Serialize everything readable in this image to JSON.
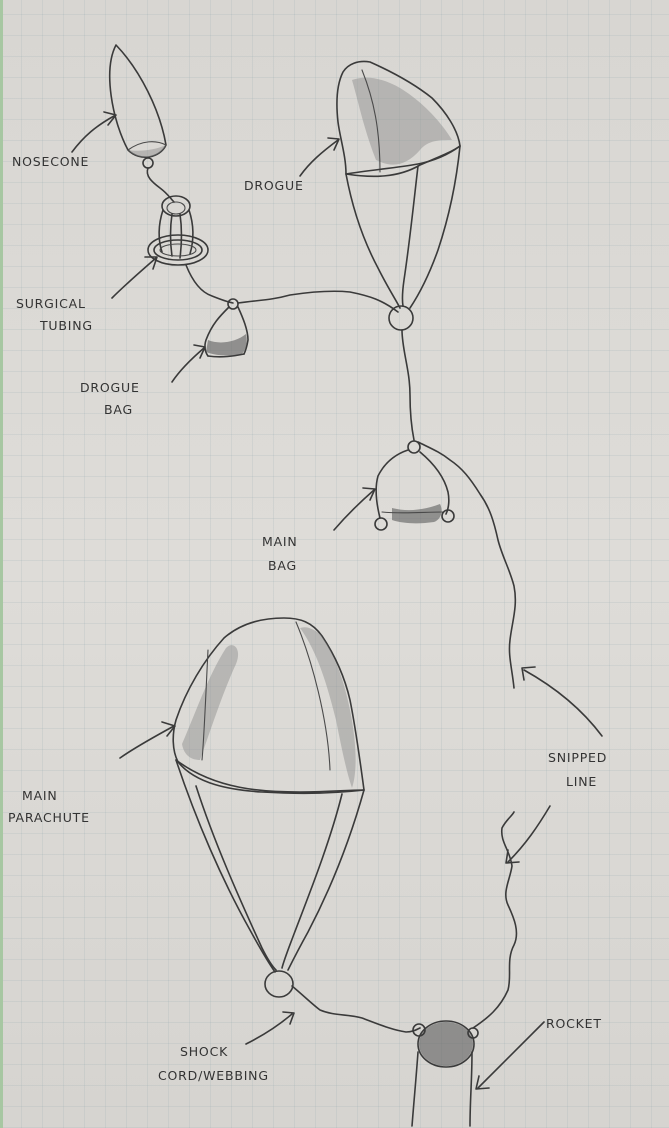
{
  "labels": {
    "nosecone": "NOSECONE",
    "drogue": "DROGUE",
    "surgical_tubing_l1": "SURGICAL",
    "surgical_tubing_l2": "TUBING",
    "drogue_bag_l1": "DROGUE",
    "drogue_bag_l2": "BAG",
    "main_bag_l1": "MAIN",
    "main_bag_l2": "BAG",
    "main_parachute_l1": "MAIN",
    "main_parachute_l2": "PARACHUTE",
    "snipped_line_l1": "SNIPPED",
    "snipped_line_l2": "LINE",
    "shock_cord_l1": "SHOCK",
    "shock_cord_l2": "CORD/WEBBING",
    "rocket": "ROCKET"
  }
}
